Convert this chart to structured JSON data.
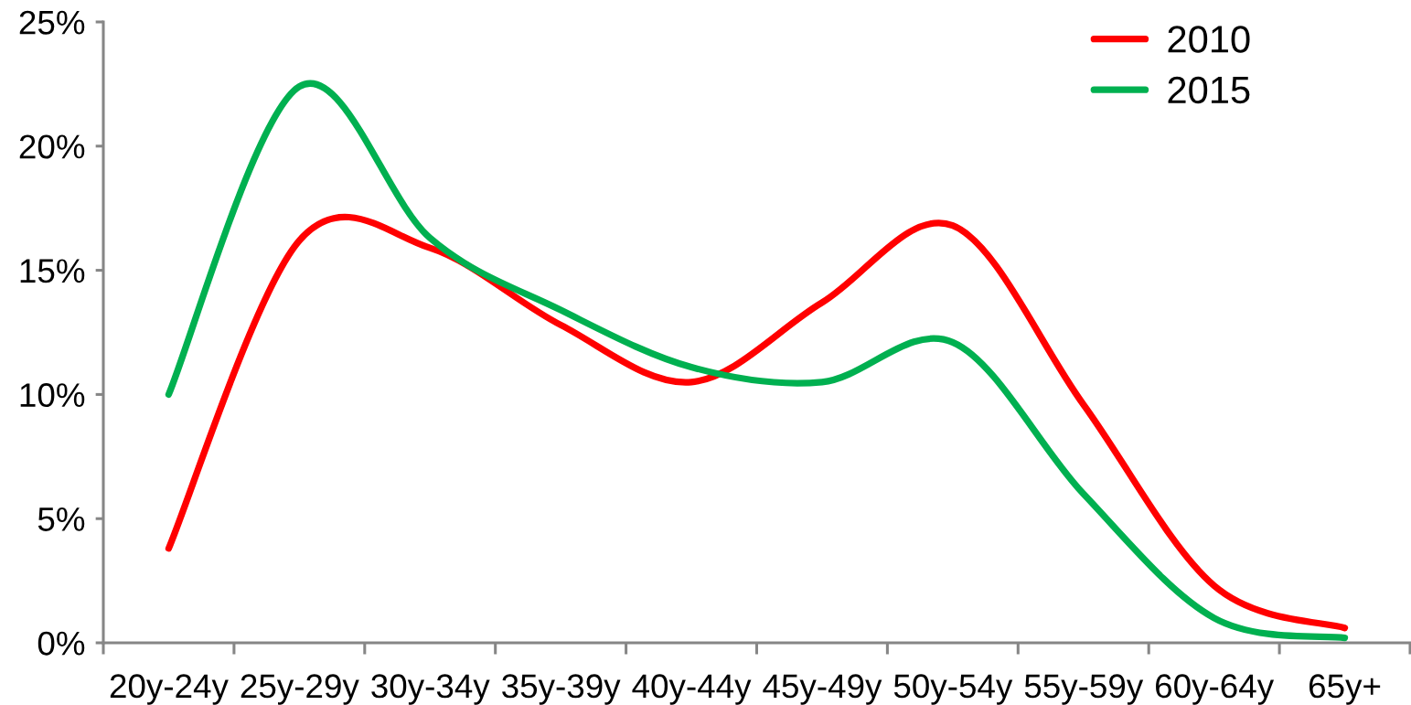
{
  "chart_data": {
    "type": "line",
    "categories": [
      "20y-24y",
      "25y-29y",
      "30y-34y",
      "35y-39y",
      "40y-44y",
      "45y-49y",
      "50y-54y",
      "55y-59y",
      "60y-64y",
      "65y+"
    ],
    "series": [
      {
        "name": "2010",
        "color": "#ff0000",
        "values": [
          3.8,
          16.2,
          15.9,
          12.8,
          10.5,
          13.7,
          16.8,
          9.6,
          2.3,
          0.6
        ]
      },
      {
        "name": "2015",
        "color": "#00b050",
        "values": [
          10.0,
          22.4,
          16.3,
          13.4,
          11.1,
          10.5,
          12.1,
          6.0,
          1.0,
          0.2
        ]
      }
    ],
    "ylim": [
      0,
      25
    ],
    "yticks": [
      {
        "value": 0,
        "label": "0%"
      },
      {
        "value": 5,
        "label": "5%"
      },
      {
        "value": 10,
        "label": "10%"
      },
      {
        "value": 15,
        "label": "15%"
      },
      {
        "value": 20,
        "label": "20%"
      },
      {
        "value": 25,
        "label": "25%"
      }
    ],
    "legend": "top right",
    "line_style": "solid"
  }
}
